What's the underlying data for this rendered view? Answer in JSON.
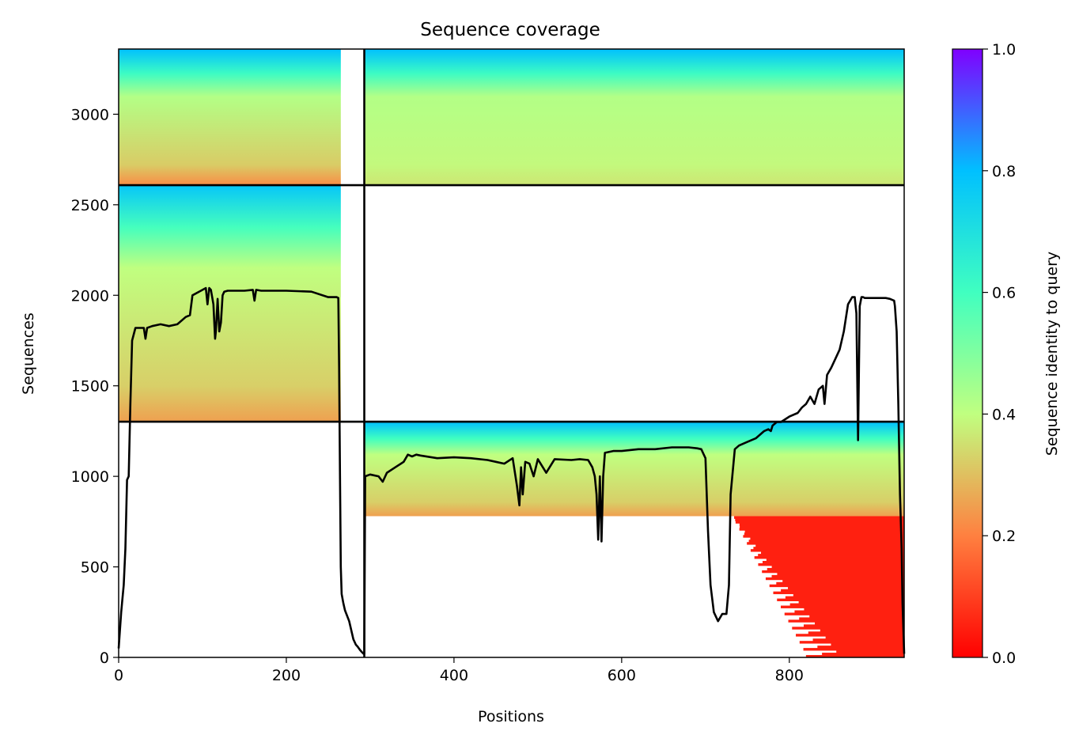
{
  "chart_data": {
    "type": "heatmap",
    "title": "Sequence coverage",
    "xlabel": "Positions",
    "ylabel": "Sequences",
    "xlim": [
      0,
      937
    ],
    "ylim": [
      0,
      3360
    ],
    "x_ticks": [
      0,
      200,
      400,
      600,
      800
    ],
    "y_ticks": [
      0,
      500,
      1000,
      1500,
      2000,
      2500,
      3000
    ],
    "x_tick_labels": [
      "0",
      "200",
      "400",
      "600",
      "800"
    ],
    "y_tick_labels": [
      "0",
      "500",
      "1000",
      "1500",
      "2000",
      "2500",
      "3000"
    ],
    "colorbar": {
      "label": "Sequence identity to query",
      "range": [
        0,
        1
      ],
      "ticks": [
        0,
        0.2,
        0.4,
        0.6,
        0.8,
        1.0
      ],
      "tick_labels": [
        "0.0",
        "0.2",
        "0.4",
        "0.6",
        "0.8",
        "1.0"
      ],
      "colormap": "rainbow_r",
      "colors": [
        "#ff0000",
        "#ff8040",
        "#c0ff80",
        "#40ffc0",
        "#00c0ff",
        "#8000ff"
      ]
    },
    "domain_boundary_x": 293,
    "group_boundaries_y": [
      1302,
      2608
    ],
    "groups": [
      {
        "y_range": [
          2608,
          3360
        ],
        "blocks": [
          {
            "x": [
              0,
              265
            ],
            "id_top": 0.8,
            "id_mid": 0.42,
            "id_bottom": 0.22
          },
          {
            "x": [
              293,
              937
            ],
            "id_top": 0.8,
            "id_mid": 0.42,
            "id_bottom": 0.36
          }
        ]
      },
      {
        "y_range": [
          1302,
          2608
        ],
        "blocks": [
          {
            "x": [
              0,
              265
            ],
            "id_top": 0.78,
            "id_mid": 0.4,
            "id_bottom": 0.25
          }
        ]
      },
      {
        "y_range": [
          0,
          1302
        ],
        "blocks": [
          {
            "x": [
              293,
              937
            ],
            "id_top": 0.8,
            "id_mid": 0.4,
            "id_bottom": 0.25,
            "sparse_below": 780
          },
          {
            "x": [
              730,
              937
            ],
            "id_top": 0.05,
            "id_mid": 0.05,
            "id_bottom": 0.05,
            "y_max": 780,
            "sparse": true
          }
        ]
      }
    ],
    "coverage_line": {
      "name": "",
      "color": "#000000",
      "x": [
        0,
        3,
        6,
        8,
        10,
        12,
        14,
        16,
        20,
        30,
        32,
        34,
        40,
        50,
        60,
        70,
        80,
        85,
        88,
        100,
        104,
        106,
        108,
        110,
        113,
        115,
        116,
        118,
        120,
        122,
        124,
        126,
        130,
        150,
        160,
        162,
        164,
        170,
        200,
        230,
        250,
        255,
        260,
        262,
        263,
        264,
        265,
        266,
        268,
        270,
        275,
        280,
        283,
        285,
        288,
        290,
        292,
        293,
        294,
        300,
        310,
        315,
        320,
        330,
        340,
        345,
        350,
        355,
        360,
        380,
        400,
        420,
        440,
        450,
        460,
        470,
        475,
        478,
        480,
        482,
        485,
        490,
        495,
        500,
        510,
        520,
        540,
        550,
        560,
        565,
        568,
        570,
        572,
        574,
        576,
        578,
        580,
        590,
        600,
        620,
        640,
        660,
        680,
        690,
        695,
        700,
        703,
        706,
        710,
        715,
        720,
        725,
        728,
        730,
        735,
        740,
        750,
        760,
        770,
        775,
        778,
        780,
        785,
        790,
        800,
        810,
        815,
        820,
        825,
        830,
        835,
        840,
        842,
        845,
        850,
        855,
        860,
        865,
        870,
        875,
        876,
        878,
        880,
        882,
        884,
        886,
        888,
        890,
        900,
        910,
        915,
        920,
        925,
        926,
        928,
        930,
        932,
        934,
        935,
        937
      ],
      "y": [
        50,
        250,
        400,
        600,
        980,
        1000,
        1400,
        1750,
        1820,
        1820,
        1760,
        1820,
        1830,
        1840,
        1830,
        1840,
        1880,
        1890,
        2000,
        2030,
        2040,
        1950,
        2040,
        2030,
        1950,
        1760,
        1800,
        1980,
        1800,
        1850,
        2000,
        2020,
        2025,
        2025,
        2030,
        1970,
        2030,
        2025,
        2025,
        2020,
        1990,
        1990,
        1990,
        1985,
        1600,
        1000,
        500,
        350,
        300,
        260,
        200,
        100,
        70,
        60,
        40,
        30,
        20,
        20,
        1000,
        1010,
        1000,
        970,
        1020,
        1050,
        1080,
        1120,
        1110,
        1120,
        1115,
        1100,
        1105,
        1100,
        1090,
        1080,
        1070,
        1100,
        950,
        840,
        1050,
        900,
        1080,
        1070,
        1000,
        1095,
        1020,
        1095,
        1090,
        1095,
        1090,
        1050,
        1000,
        900,
        650,
        1000,
        640,
        1000,
        1130,
        1140,
        1140,
        1150,
        1150,
        1160,
        1160,
        1155,
        1150,
        1100,
        700,
        400,
        250,
        200,
        240,
        240,
        400,
        900,
        1150,
        1170,
        1190,
        1210,
        1250,
        1260,
        1250,
        1280,
        1300,
        1300,
        1330,
        1350,
        1380,
        1400,
        1440,
        1400,
        1480,
        1500,
        1400,
        1560,
        1600,
        1650,
        1700,
        1800,
        1950,
        1990,
        1990,
        1990,
        1900,
        1200,
        1940,
        1990,
        1990,
        1985,
        1985,
        1985,
        1985,
        1980,
        1970,
        1940,
        1800,
        1400,
        900,
        600,
        300,
        20
      ]
    }
  }
}
